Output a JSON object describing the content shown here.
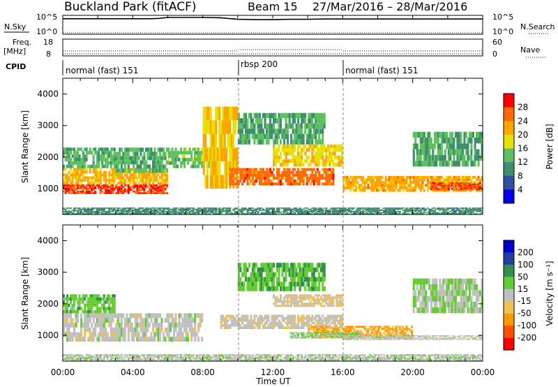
{
  "header": {
    "station": "Buckland Park (fitACF)",
    "beam": "Beam 15",
    "dates": "27/Mar/2016 – 28/Mar/2016"
  },
  "panels": {
    "nsky": {
      "label": "N.Sky",
      "ticks": [
        "10^5",
        "10^0"
      ],
      "right_label": "N.Search",
      "right_ticks": [
        "10^5",
        "10^0"
      ]
    },
    "freq": {
      "label_line1": "Freq.",
      "label_line2": "[MHz]",
      "ticks": [
        "18",
        "8"
      ],
      "right_label": "Nave",
      "right_ticks": [
        "60",
        "0"
      ]
    },
    "cpid": {
      "label": "CPID"
    }
  },
  "colors": {
    "power": [
      "#0000ee",
      "#2f4fa0",
      "#3f8f6f",
      "#5fc05f",
      "#e8e000",
      "#ffa500",
      "#ff6a00",
      "#ff0000"
    ],
    "velocity": [
      "#ff0000",
      "#ff5000",
      "#ff9900",
      "#f0c050",
      "#c0c0c0",
      "#66cc33",
      "#2f8f4f",
      "#1f3f9f",
      "#0000cc"
    ]
  },
  "chart_data": [
    {
      "type": "line",
      "name": "nsky",
      "x": [
        0,
        1,
        2,
        3,
        4,
        5,
        5.5,
        6,
        7,
        8,
        9,
        10,
        11,
        12,
        13,
        14,
        15,
        16,
        17,
        18,
        19,
        20,
        21,
        22,
        23,
        24
      ],
      "y_log10": [
        4.6,
        4.6,
        4.6,
        4.6,
        4.6,
        4.6,
        4.7,
        5.0,
        5.0,
        5.0,
        4.9,
        4.4,
        4.3,
        4.3,
        4.4,
        4.4,
        4.5,
        4.5,
        4.5,
        4.5,
        4.5,
        4.5,
        4.5,
        4.5,
        4.5,
        4.5
      ],
      "ylim_log10": [
        0,
        5
      ]
    },
    {
      "type": "table",
      "name": "cpid",
      "segments": [
        {
          "start_h": 0,
          "end_h": 10,
          "label": "normal (fast) 151"
        },
        {
          "start_h": 10,
          "end_h": 16,
          "label": "rbsp 200"
        },
        {
          "start_h": 16,
          "end_h": 24,
          "label": "normal (fast) 151"
        }
      ]
    },
    {
      "type": "heatmap",
      "name": "power",
      "ylabel": "Slant Range [km]",
      "ylim": [
        180,
        4500
      ],
      "yticks": [
        1000,
        2000,
        3000,
        4000
      ],
      "xlim_h": [
        0,
        24
      ],
      "colorbar": {
        "label": "Power [dB]",
        "ticks": [
          "28",
          "24",
          "20",
          "16",
          "12",
          "8",
          "4"
        ],
        "range": [
          0,
          32
        ]
      },
      "bands": [
        {
          "h": [
            0,
            6
          ],
          "r": [
            830,
            1130
          ],
          "level": 28
        },
        {
          "h": [
            0,
            6
          ],
          "r": [
            1130,
            1650
          ],
          "level": 21
        },
        {
          "h": [
            0,
            3
          ],
          "r": [
            1650,
            2300
          ],
          "level": 13
        },
        {
          "h": [
            3,
            6
          ],
          "r": [
            1500,
            2300
          ],
          "level": 12
        },
        {
          "h": [
            6,
            8.5
          ],
          "r": [
            1650,
            2300
          ],
          "level": 14
        },
        {
          "h": [
            8,
            10
          ],
          "r": [
            1000,
            3600
          ],
          "level": 20
        },
        {
          "h": [
            9.5,
            15.5
          ],
          "r": [
            1100,
            1650
          ],
          "level": 26
        },
        {
          "h": [
            12,
            16
          ],
          "r": [
            1700,
            2400
          ],
          "level": 19
        },
        {
          "h": [
            10,
            15
          ],
          "r": [
            2400,
            3400
          ],
          "level": 12
        },
        {
          "h": [
            16,
            24
          ],
          "r": [
            900,
            1400
          ],
          "level": 22
        },
        {
          "h": [
            21,
            24
          ],
          "r": [
            950,
            1200
          ],
          "level": 27
        },
        {
          "h": [
            20,
            24
          ],
          "r": [
            1700,
            2800
          ],
          "level": 12
        },
        {
          "h": [
            0,
            24
          ],
          "r": [
            180,
            400
          ],
          "level": 10
        }
      ]
    },
    {
      "type": "heatmap",
      "name": "velocity",
      "ylabel": "Slant Range [km]",
      "ylim": [
        180,
        4500
      ],
      "yticks": [
        1000,
        2000,
        3000,
        4000
      ],
      "xlabel": "Time UT",
      "xlim_h": [
        0,
        24
      ],
      "xticks": [
        "00:00",
        "04:00",
        "08:00",
        "12:00",
        "16:00",
        "20:00",
        "00:00"
      ],
      "colorbar": {
        "label": "Velocity [m s⁻¹]",
        "ticks": [
          "200",
          "100",
          "50",
          "15",
          "-15",
          "-50",
          "-100",
          "-200"
        ],
        "range": [
          -250,
          250
        ]
      },
      "bands": [
        {
          "h": [
            0,
            8
          ],
          "r": [
            800,
            1700
          ],
          "level": 0
        },
        {
          "h": [
            0,
            3
          ],
          "r": [
            1700,
            2300
          ],
          "level": 60
        },
        {
          "h": [
            9,
            16
          ],
          "r": [
            1200,
            1650
          ],
          "level": -10
        },
        {
          "h": [
            12,
            16
          ],
          "r": [
            1900,
            2300
          ],
          "level": -30
        },
        {
          "h": [
            14,
            20
          ],
          "r": [
            900,
            1300
          ],
          "level": -80
        },
        {
          "h": [
            13,
            17
          ],
          "r": [
            900,
            1100
          ],
          "level": 40
        },
        {
          "h": [
            16,
            24
          ],
          "r": [
            850,
            1000
          ],
          "level": 0
        },
        {
          "h": [
            10,
            15
          ],
          "r": [
            2400,
            3300
          ],
          "level": 70
        },
        {
          "h": [
            20,
            24
          ],
          "r": [
            1700,
            2800
          ],
          "level": 30
        },
        {
          "h": [
            0,
            24
          ],
          "r": [
            180,
            400
          ],
          "level": 10
        }
      ]
    }
  ]
}
